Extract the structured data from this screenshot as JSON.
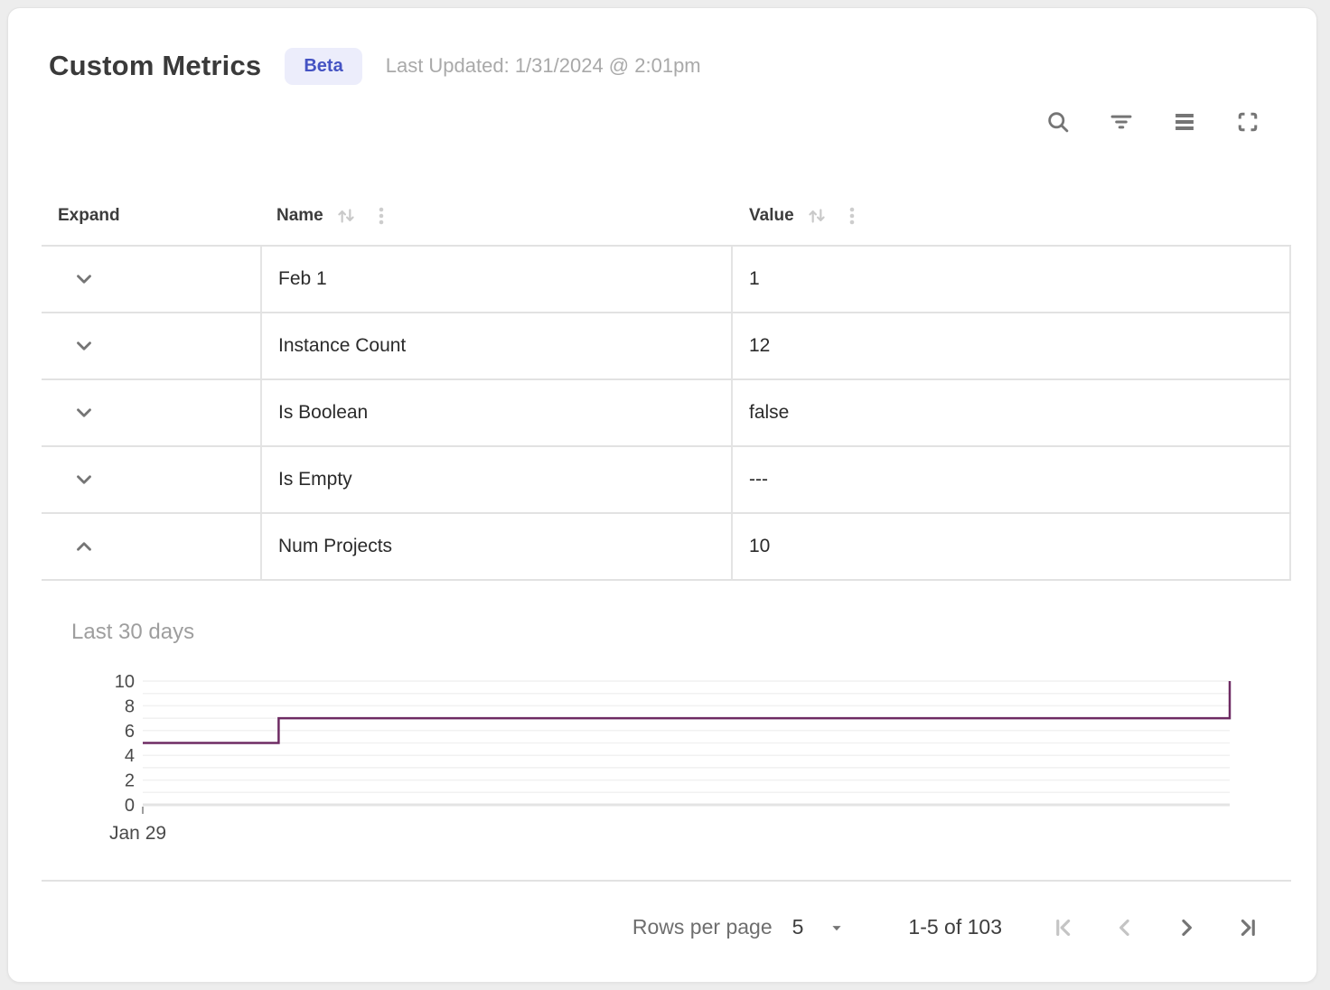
{
  "header": {
    "title": "Custom Metrics",
    "badge": "Beta",
    "last_updated": "Last Updated: 1/31/2024 @ 2:01pm"
  },
  "toolbar": {
    "icons": [
      "search-icon",
      "filter-icon",
      "density-icon",
      "fullscreen-icon"
    ]
  },
  "table": {
    "columns": [
      {
        "label": "Expand",
        "sortable": false
      },
      {
        "label": "Name",
        "sortable": true
      },
      {
        "label": "Value",
        "sortable": true
      }
    ],
    "rows": [
      {
        "name": "Feb 1",
        "value": "1",
        "expanded": false
      },
      {
        "name": "Instance Count",
        "value": "12",
        "expanded": false
      },
      {
        "name": "Is Boolean",
        "value": "false",
        "expanded": false
      },
      {
        "name": "Is Empty",
        "value": "---",
        "expanded": false
      },
      {
        "name": "Num Projects",
        "value": "10",
        "expanded": true
      }
    ]
  },
  "chart_data": {
    "type": "line",
    "subtype": "step",
    "title": "Last 30 days",
    "series": [
      {
        "name": "Num Projects",
        "points": [
          [
            0,
            5
          ],
          [
            0.125,
            5
          ],
          [
            0.125,
            7
          ],
          [
            1,
            7
          ],
          [
            1,
            10
          ]
        ]
      }
    ],
    "x_unit": "fraction-of-visible-range",
    "x_ticks": [
      {
        "pos": 0,
        "label": "Jan 29"
      }
    ],
    "ylim": [
      0,
      10
    ],
    "ytick_labels": [
      0,
      2,
      4,
      6,
      8,
      10
    ],
    "grid_interval": 1,
    "legend": "none",
    "line_color": "#6e2b63",
    "grid_color": "#f1f1f1",
    "baseline_color": "#e4e4e4",
    "tick_color": "#9e9e9e",
    "label_color": "#4a4a4a"
  },
  "footer": {
    "rows_per_page_label": "Rows per page",
    "rows_per_page_value": "5",
    "range_label": "1-5 of 103",
    "pager": {
      "first_enabled": false,
      "prev_enabled": false,
      "next_enabled": true,
      "last_enabled": true
    }
  }
}
